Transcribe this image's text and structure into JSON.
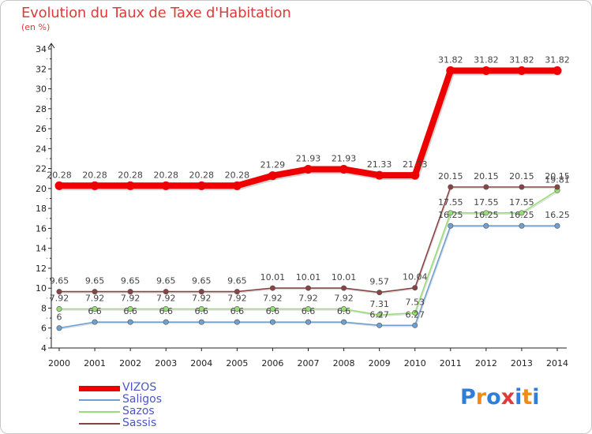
{
  "header": {
    "title": "Evolution du Taux de Taxe d'Habitation",
    "unit": "(en %)"
  },
  "logo": {
    "text": "Proxiti",
    "colors": [
      "#2f7fd8",
      "#f08a1c",
      "#2f7fd8",
      "#e03a3a",
      "#2f7fd8",
      "#f08a1c",
      "#2f7fd8"
    ]
  },
  "chart_data": {
    "type": "line",
    "title": "Evolution du Taux de Taxe d'Habitation",
    "ylabel": "(en %)",
    "xlabel": "",
    "x": [
      2000,
      2001,
      2002,
      2003,
      2004,
      2005,
      2006,
      2007,
      2008,
      2009,
      2010,
      2011,
      2012,
      2013,
      2014
    ],
    "ylim": [
      4,
      34
    ],
    "yticks": [
      4,
      6,
      8,
      10,
      12,
      14,
      16,
      18,
      20,
      22,
      24,
      26,
      28,
      30,
      32,
      34
    ],
    "grid": false,
    "legend": "bottom-left",
    "series": [
      {
        "name": "VIZOS",
        "color": "#ee0000",
        "width": 8,
        "values": [
          20.28,
          20.28,
          20.28,
          20.28,
          20.28,
          20.28,
          21.29,
          21.93,
          21.93,
          21.33,
          21.33,
          31.82,
          31.82,
          31.82,
          31.82
        ],
        "labels": [
          "20.28",
          "20.28",
          "20.28",
          "20.28",
          "20.28",
          "20.28",
          "21.29",
          "21.93",
          "21.93",
          "21.33",
          "21.33",
          "31.82",
          "31.82",
          "31.82",
          "31.82"
        ]
      },
      {
        "name": "Saligos",
        "color": "#6fa0d0",
        "width": 1.6,
        "values": [
          6,
          6.6,
          6.6,
          6.6,
          6.6,
          6.6,
          6.6,
          6.6,
          6.6,
          6.27,
          6.27,
          16.25,
          16.25,
          16.25,
          16.25
        ],
        "labels": [
          "6",
          "6.6",
          "6.6",
          "6.6",
          "6.6",
          "6.6",
          "6.6",
          "6.6",
          "6.6",
          "6.27",
          "6.27",
          "16.25",
          "16.25",
          "16.25",
          "16.25"
        ]
      },
      {
        "name": "Sazos",
        "color": "#99dd77",
        "width": 1.6,
        "values": [
          7.92,
          7.92,
          7.92,
          7.92,
          7.92,
          7.92,
          7.92,
          7.92,
          7.92,
          7.31,
          7.53,
          17.55,
          17.55,
          17.55,
          19.81
        ],
        "labels": [
          "7.92",
          "7.92",
          "7.92",
          "7.92",
          "7.92",
          "7.92",
          "7.92",
          "7.92",
          "7.92",
          "7.31",
          "7.53",
          "17.55",
          "17.55",
          "17.55",
          "19.81"
        ]
      },
      {
        "name": "Sassis",
        "color": "#884444",
        "width": 1.6,
        "values": [
          9.65,
          9.65,
          9.65,
          9.65,
          9.65,
          9.65,
          10.01,
          10.01,
          10.01,
          9.57,
          10.04,
          20.15,
          20.15,
          20.15,
          20.15
        ],
        "labels": [
          "9.65",
          "9.65",
          "9.65",
          "9.65",
          "9.65",
          "9.65",
          "10.01",
          "10.01",
          "10.01",
          "9.57",
          "10.04",
          "20.15",
          "20.15",
          "20.15",
          "20.15"
        ]
      }
    ]
  }
}
